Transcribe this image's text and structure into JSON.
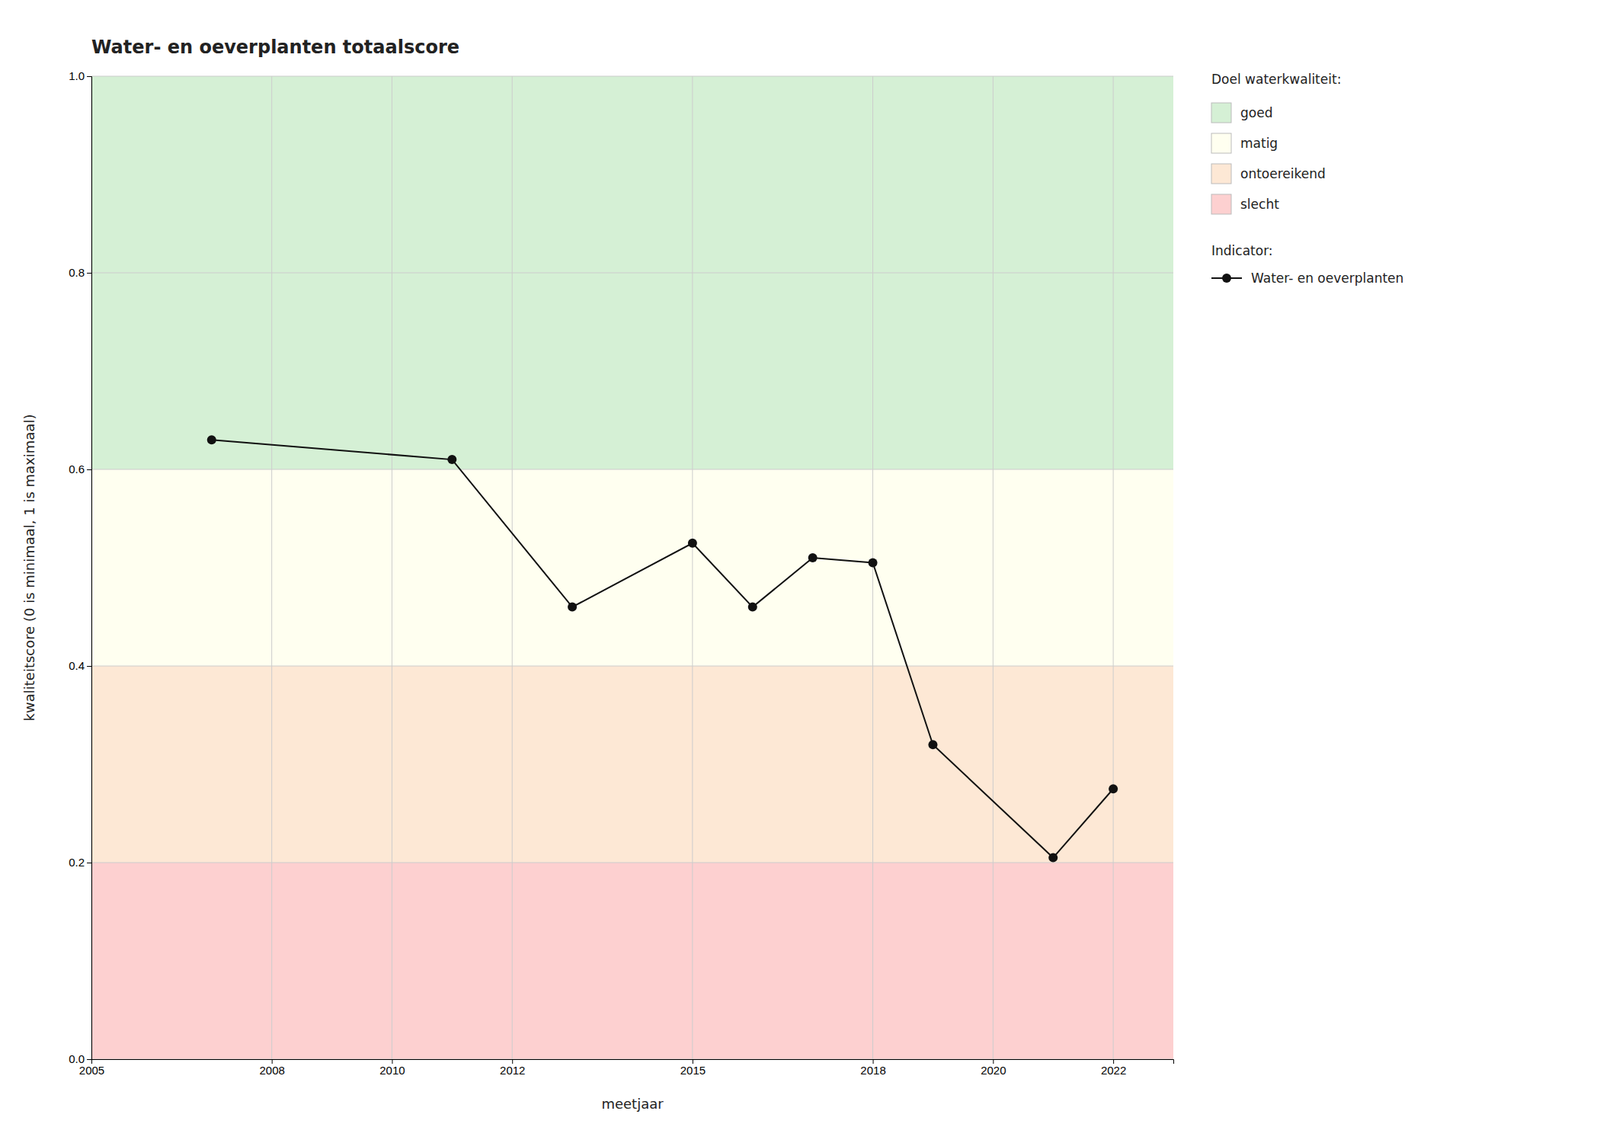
{
  "chart_data": {
    "type": "line",
    "title": "Water- en oeverplanten totaalscore",
    "x_label": "meetjaar",
    "y_label": "kwaliteitscore (0 is minimaal, 1 is maximaal)",
    "x": [
      2007,
      2011,
      2013,
      2015,
      2016,
      2017,
      2018,
      2019,
      2021,
      2022
    ],
    "series": [
      {
        "name": "Water- en oeverplanten",
        "color": "#111111",
        "marker": "circle",
        "values": [
          0.63,
          0.61,
          0.46,
          0.525,
          0.46,
          0.51,
          0.505,
          0.32,
          0.205,
          0.275
        ]
      }
    ],
    "xlim": [
      2005,
      2023
    ],
    "ylim": [
      0.0,
      1.0
    ],
    "xticks": [
      2005,
      2008,
      2010,
      2012,
      2015,
      2018,
      2020,
      2022
    ],
    "yticks": [
      {
        "value": 0.0,
        "label": "0.0"
      },
      0.2,
      0.4,
      0.6,
      0.8,
      {
        "value": 1.0,
        "label": "1.0"
      }
    ],
    "bands_title": "Doel waterkwaliteit:",
    "bands": [
      {
        "name": "goed",
        "from": 0.6,
        "to": 1.0,
        "color": "#d5f0d5"
      },
      {
        "name": "matig",
        "from": 0.4,
        "to": 0.6,
        "color": "#fffff0"
      },
      {
        "name": "ontoereikend",
        "from": 0.2,
        "to": 0.4,
        "color": "#fde8d5"
      },
      {
        "name": "slecht",
        "from": 0.0,
        "to": 0.2,
        "color": "#fdd0d0"
      }
    ],
    "legend_title": "Indicator:",
    "legend": "right",
    "grid": true
  }
}
